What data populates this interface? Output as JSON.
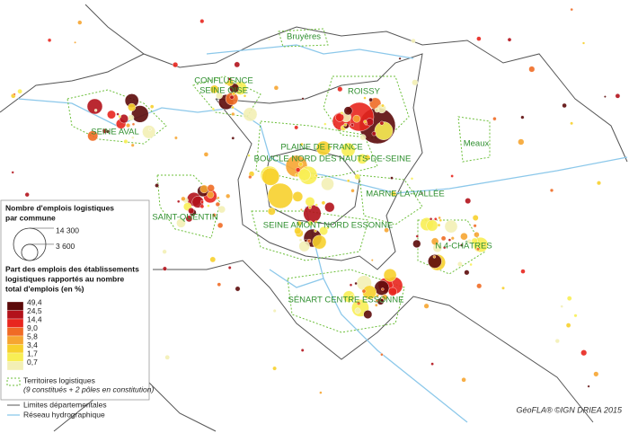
{
  "places": [
    {
      "lines": [
        "Bruyères"
      ]
    },
    {
      "lines": [
        "CONFLUENCE",
        "SEINE OISE"
      ]
    },
    {
      "lines": [
        "ROISSY"
      ]
    },
    {
      "lines": [
        "SEINE AVAL"
      ]
    },
    {
      "lines": [
        "Meaux"
      ]
    },
    {
      "lines": [
        "PLAINE DE FRANCE"
      ]
    },
    {
      "lines": [
        "BOUCLE NORD DES HAUTS-DE-SEINE"
      ]
    },
    {
      "lines": [
        "MARNE-LA-VALLÉE"
      ]
    },
    {
      "lines": [
        "SAINT-QUENTIN"
      ]
    },
    {
      "lines": [
        "SEINE AMONT NORD ESSONNE"
      ]
    },
    {
      "lines": [
        "N 4-CHÂTRES"
      ]
    },
    {
      "lines": [
        "SÉNART CENTRE ESSONNE"
      ]
    }
  ],
  "legend": {
    "size_title": [
      "Nombre d'emplois logistiques",
      "par commune"
    ],
    "sizes": [
      {
        "value": 14300,
        "label": "14 300"
      },
      {
        "value": 3600,
        "label": "3 600"
      }
    ],
    "share_title": [
      "Part des emplois des établissements",
      "logistiques rapportés au nombre",
      "total d'emplois (en %)"
    ],
    "classes": [
      {
        "value": 49.4,
        "label": "49,4",
        "color": "#5c0a0a"
      },
      {
        "value": 24.5,
        "label": "24,5",
        "color": "#b3121b"
      },
      {
        "value": 14.4,
        "label": "14,4",
        "color": "#e8261e"
      },
      {
        "value": 9.0,
        "label": "9,0",
        "color": "#f06b25"
      },
      {
        "value": 5.8,
        "label": "5,8",
        "color": "#f6a531"
      },
      {
        "value": 3.4,
        "label": "3,4",
        "color": "#f7d02c"
      },
      {
        "value": 1.7,
        "label": "1,7",
        "color": "#f8ee54"
      },
      {
        "value": 0.7,
        "label": "0,7",
        "color": "#f3efb5"
      }
    ],
    "territories": "Territoires logistiques",
    "territories_note": "(9 constitués + 2 pôles en constitution)",
    "boundaries": "Limites départementales",
    "hydro": "Réseau hydrographique"
  },
  "credit": "GéoFLA® ©IGN DRIEA 2015"
}
